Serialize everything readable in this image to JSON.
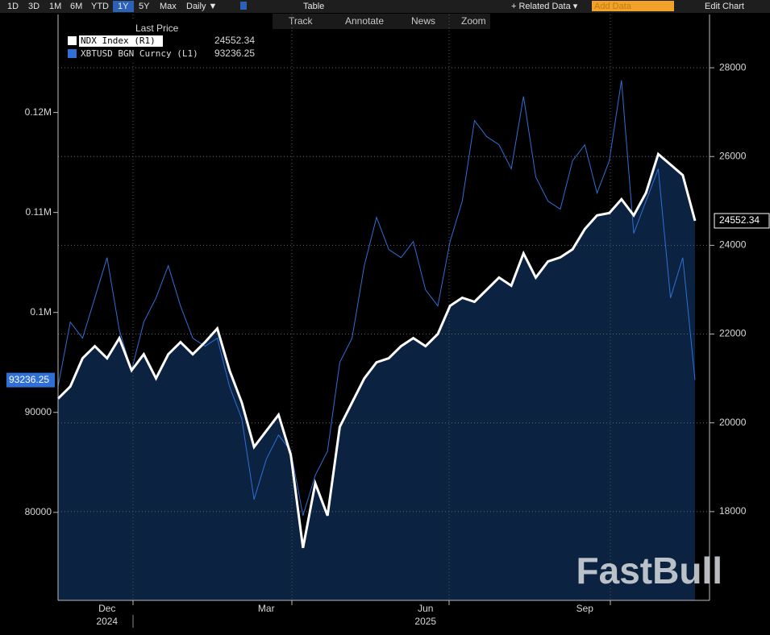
{
  "toolbar": {
    "ranges": [
      "1D",
      "3D",
      "1M",
      "6M",
      "YTD",
      "1Y",
      "5Y",
      "Max"
    ],
    "active_range": "1Y",
    "frequency": "Daily ▼",
    "table": "Table",
    "related": "+ Related Data ▾",
    "add_data": "Add Data",
    "edit": "Edit Chart",
    "tools": [
      "Track",
      "Annotate",
      "News",
      "Zoom"
    ]
  },
  "chart_data": {
    "type": "line",
    "legend_title": "Last Price",
    "watermark": "FastBull",
    "years": [
      "2024",
      "2025"
    ],
    "categories": [
      null,
      null,
      null,
      null,
      "Dec",
      null,
      null,
      null,
      null,
      null,
      null,
      null,
      null,
      null,
      null,
      null,
      null,
      "Mar",
      null,
      null,
      null,
      null,
      null,
      null,
      null,
      null,
      null,
      null,
      null,
      null,
      "Jun",
      null,
      null,
      null,
      null,
      null,
      null,
      null,
      null,
      null,
      null,
      null,
      null,
      "Sep",
      null,
      null,
      null,
      null,
      null,
      null,
      null,
      null,
      null
    ],
    "series": [
      {
        "name": "NDX Index  (R1)",
        "color": "#ffffff",
        "fill": "#0b2240",
        "axis": "y2",
        "last": 24552.34,
        "values": [
          20545,
          20818,
          21455,
          21727,
          21455,
          21909,
          21182,
          21545,
          21000,
          21545,
          21818,
          21545,
          21818,
          22127,
          21182,
          20455,
          19455,
          19818,
          20182,
          19273,
          17182,
          18636,
          17909,
          19909,
          20455,
          21000,
          21364,
          21455,
          21727,
          21909,
          21727,
          22000,
          22636,
          22818,
          22727,
          23000,
          23273,
          23091,
          23818,
          23273,
          23636,
          23727,
          23909,
          24364,
          24673,
          24727,
          25036,
          24673,
          25182,
          26055,
          25818,
          25582,
          24552.34
        ]
      },
      {
        "name": "XBTUSD BGN Curncy  (L1)",
        "color": "#2f6fd6",
        "axis": "y",
        "last": 93236.25,
        "values": [
          92581,
          99032,
          97419,
          101452,
          105484,
          98226,
          94194,
          99032,
          101452,
          104677,
          100645,
          97419,
          96613,
          97419,
          92581,
          89355,
          81290,
          85323,
          87742,
          86129,
          79677,
          83710,
          86129,
          95000,
          97419,
          104677,
          109516,
          106290,
          105484,
          107097,
          102258,
          100645,
          107097,
          111129,
          119194,
          117581,
          116774,
          114355,
          121613,
          113548,
          111129,
          110323,
          115161,
          116774,
          111935,
          115161,
          123226,
          107903,
          111129,
          114355,
          101452,
          105484,
          93236.25
        ]
      }
    ],
    "ylim": [
      71200,
      129800
    ],
    "yticks": [
      80000,
      90000,
      {
        "value": 100000,
        "label": "0.1M"
      },
      {
        "value": 110000,
        "label": "0.11M"
      },
      {
        "value": 120000,
        "label": "0.12M"
      }
    ],
    "y2lim": [
      16000,
      29200
    ],
    "y2ticks": [
      18000,
      20000,
      22000,
      24000,
      26000,
      28000
    ],
    "grid": true
  }
}
